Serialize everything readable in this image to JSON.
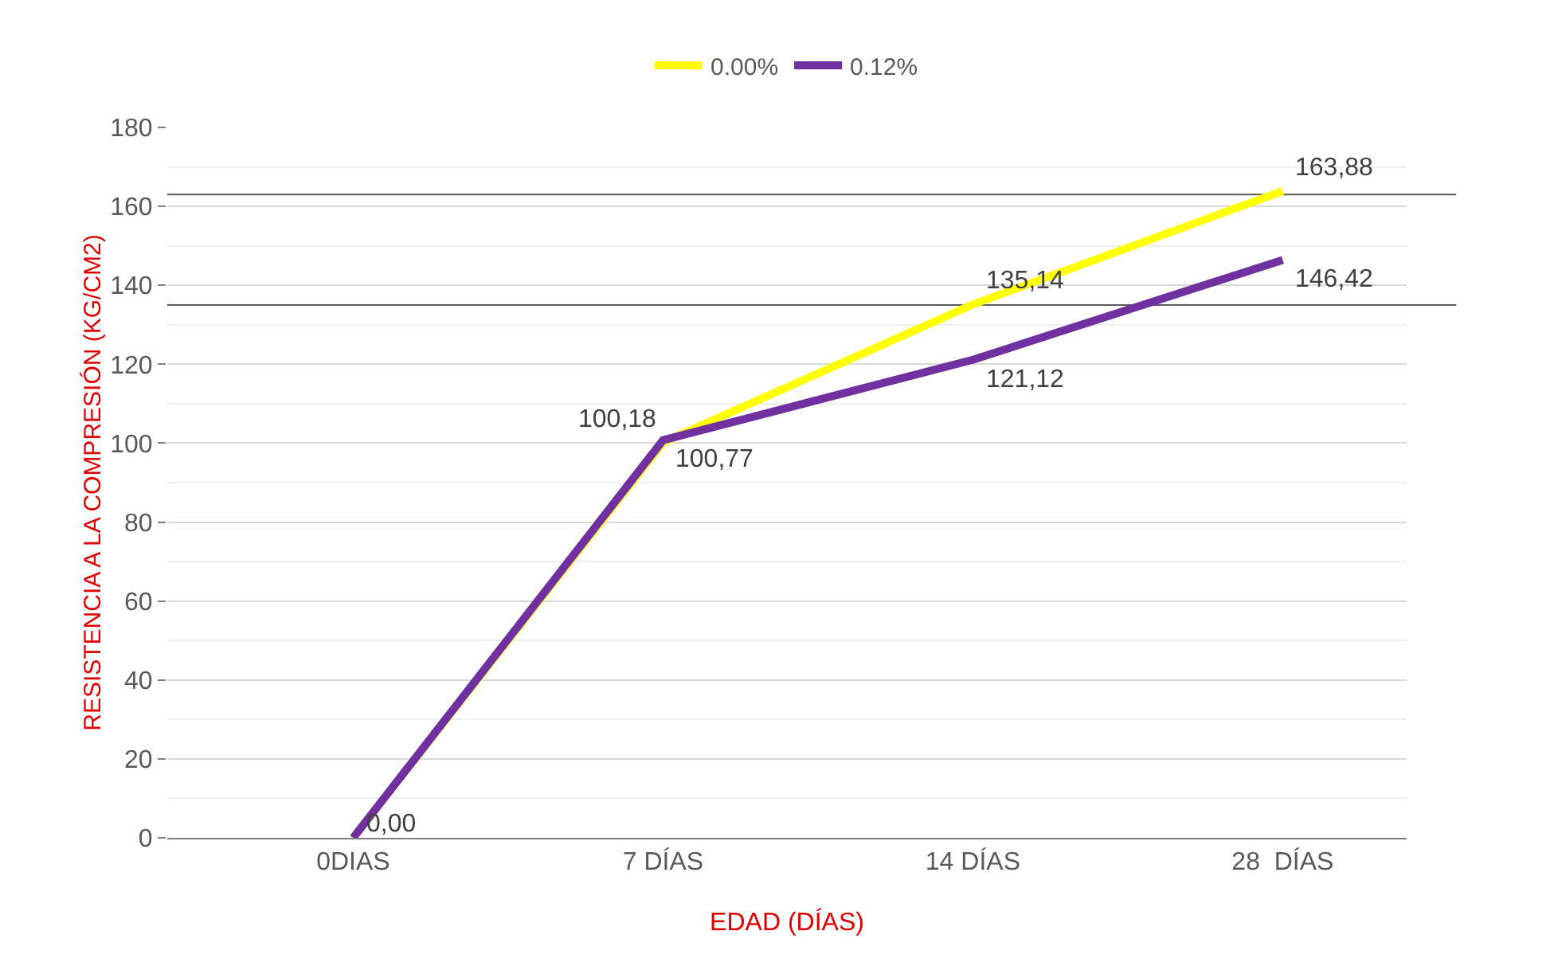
{
  "chart_data": {
    "type": "line",
    "xlabel": "EDAD (DÍAS)",
    "ylabel": "RESISTENCIA A LA COMPRESIÓN (KG/CM2)",
    "categories": [
      "0DIAS",
      "7 DÍAS",
      "14 DÍAS",
      "28  DÍAS"
    ],
    "series": [
      {
        "name": "0.00%",
        "color": "#ffff00",
        "values": [
          0,
          100.18,
          135.14,
          163.88
        ],
        "value_labels": [
          null,
          "100,18",
          "135,14",
          "163,88"
        ]
      },
      {
        "name": "0.12%",
        "color": "#7030a0",
        "values": [
          0,
          100.77,
          121.12,
          146.42
        ],
        "value_labels": [
          "0,00",
          "100,77",
          "121,12",
          "146,42"
        ]
      }
    ],
    "ylim": [
      0,
      180
    ],
    "yticks": [
      0,
      20,
      40,
      60,
      80,
      100,
      120,
      140,
      160,
      180
    ],
    "ref_lines": [
      {
        "axis": "y",
        "value": 135,
        "color": "#595959"
      },
      {
        "axis": "y",
        "value": 163,
        "color": "#595959"
      }
    ],
    "grid": "y",
    "legend": "top",
    "marker": "none",
    "line_style": "solid"
  }
}
